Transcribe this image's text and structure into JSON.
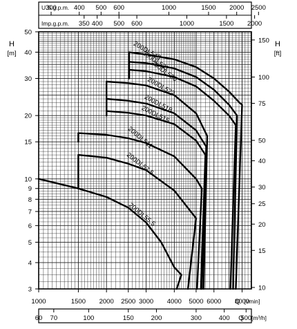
{
  "chart_data": {
    "type": "line",
    "title": "",
    "grid": true,
    "log_scale": true,
    "x_axis_main": {
      "label": "Q [l/min]",
      "name_text": "Q",
      "unit_text": "[l/min]",
      "range": [
        1000,
        8800
      ],
      "ticks": [
        1000,
        1500,
        2000,
        2500,
        3000,
        4000,
        5000,
        6000,
        8000
      ],
      "tick_labels": [
        "1000",
        "1500",
        "2000",
        "2500",
        "3000",
        "4000",
        "5000",
        "6000",
        "8000"
      ]
    },
    "x_axis_m3h": {
      "label": "Q [m³/h]",
      "name_text": "Q",
      "unit_text": "[m³/h]",
      "ticks": [
        60,
        70,
        100,
        150,
        200,
        300,
        400,
        500
      ],
      "tick_labels": [
        "60",
        "70",
        "100",
        "150",
        "200",
        "300",
        "400",
        "500"
      ]
    },
    "x_axis_usgpm": {
      "label": "U.S.g.p.m.",
      "ticks": [
        300,
        400,
        500,
        600,
        1000,
        1500,
        2000,
        2500
      ],
      "tick_labels": [
        "300",
        "400",
        "500",
        "600",
        "1000",
        "1500",
        "2000",
        "2500"
      ]
    },
    "x_axis_impgpm": {
      "label": "Imp.g.p.m.",
      "ticks": [
        350,
        400,
        500,
        600,
        1000,
        1500,
        2000
      ],
      "tick_labels": [
        "350",
        "400",
        "500",
        "600",
        "1000",
        "1500",
        "2000"
      ]
    },
    "y_axis_m": {
      "label": "H",
      "unit": "[m]",
      "range": [
        3,
        50
      ],
      "ticks": [
        3,
        4,
        5,
        6,
        7,
        8,
        9,
        10,
        15,
        20,
        30,
        40,
        50
      ],
      "tick_labels": [
        "3",
        "4",
        "5",
        "6",
        "7",
        "8",
        "9",
        "10",
        "15",
        "20",
        "30",
        "40",
        "50"
      ]
    },
    "y_axis_ft": {
      "label": "H",
      "unit": "[ft]",
      "ticks": [
        10,
        15,
        20,
        25,
        30,
        40,
        50,
        75,
        100,
        150
      ],
      "tick_labels": [
        "10",
        "15",
        "20",
        "25",
        "30",
        "40",
        "50",
        "75",
        "100",
        "150"
      ]
    },
    "series": [
      {
        "name": "200DL545",
        "x": [
          2520,
          2520,
          3000,
          4000,
          5000,
          6000,
          7000,
          7800,
          8000,
          7500
        ],
        "y": [
          30,
          40,
          39,
          37,
          34,
          30,
          26,
          23,
          22.5,
          3
        ]
      },
      {
        "name": "200DL537",
        "x": [
          2520,
          2520,
          3000,
          4000,
          5000,
          6000,
          7000,
          7600,
          7300
        ],
        "y": [
          30,
          36,
          35.5,
          33.5,
          30.5,
          26.5,
          22.5,
          20,
          3
        ]
      },
      {
        "name": "200DL530",
        "x": [
          2520,
          2520,
          3000,
          4000,
          5000,
          6000,
          7000,
          7500,
          7100
        ],
        "y": [
          30,
          33,
          32.5,
          30.5,
          27.5,
          23.5,
          20,
          18,
          3
        ]
      },
      {
        "name": "200DL522",
        "x": [
          2000,
          2000,
          2500,
          3000,
          4000,
          5000,
          5600,
          5400
        ],
        "y": [
          20,
          29,
          28.5,
          27.8,
          25,
          20.5,
          16,
          3
        ]
      },
      {
        "name": "200DL518",
        "x": [
          2000,
          2000,
          2500,
          3000,
          4000,
          5000,
          5550,
          5300
        ],
        "y": [
          20,
          24,
          23.5,
          22.8,
          20.5,
          17,
          14.2,
          3
        ]
      },
      {
        "name": "200DL515",
        "x": [
          2000,
          2000,
          2500,
          3000,
          4000,
          5000,
          5500,
          5250
        ],
        "y": [
          20,
          21,
          20.6,
          20,
          18.2,
          15.2,
          13,
          3
        ]
      },
      {
        "name": "200DL511",
        "x": [
          1500,
          1500,
          2000,
          2500,
          3000,
          4000,
          5000,
          5300,
          5050
        ],
        "y": [
          15,
          16.5,
          16.2,
          15.6,
          14.8,
          12.8,
          10,
          9,
          3
        ]
      },
      {
        "name": "200DL57.5",
        "x": [
          1500,
          1500,
          2000,
          2500,
          3000,
          4000,
          5000,
          4600
        ],
        "y": [
          9,
          13,
          12.6,
          11.8,
          11,
          8.8,
          6.5,
          3
        ]
      },
      {
        "name": "200DL55.5",
        "x": [
          1000,
          1500,
          2000,
          2500,
          3000,
          3500,
          4000,
          4300,
          4100
        ],
        "y": [
          10,
          9,
          8.2,
          7.3,
          6.2,
          5,
          3.8,
          3.5,
          3
        ]
      }
    ]
  }
}
